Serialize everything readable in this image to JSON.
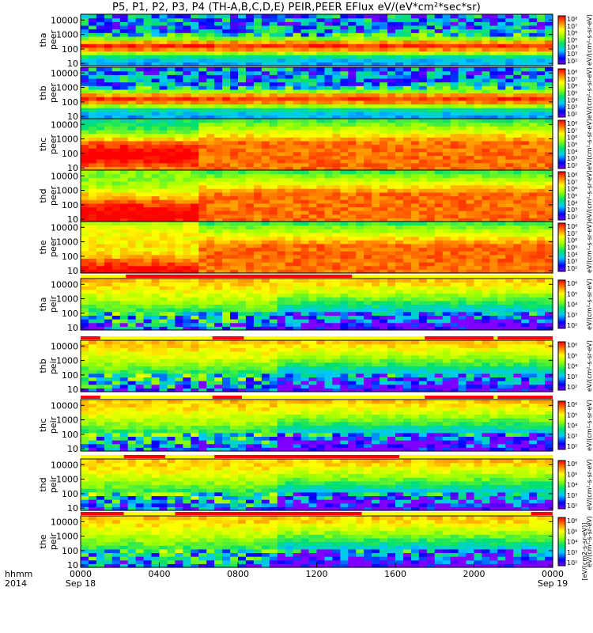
{
  "title": "P5, P1, P2, P3, P4 (TH-A,B,C,D,E) PEIR,PEER EFlux eV/(eV*cm²*sec*sr)",
  "chart_data": {
    "type": "heatmap",
    "xaxis": {
      "row_label_1": "hhmm",
      "row_label_2": "2014",
      "range_hours": [
        0,
        24
      ],
      "ticks": [
        {
          "hour": 0,
          "label": "0000",
          "date": "Sep 18"
        },
        {
          "hour": 4,
          "label": "0400",
          "date": ""
        },
        {
          "hour": 8,
          "label": "0800",
          "date": ""
        },
        {
          "hour": 12,
          "label": "1200",
          "date": ""
        },
        {
          "hour": 16,
          "label": "1600",
          "date": ""
        },
        {
          "hour": 20,
          "label": "2000",
          "date": ""
        },
        {
          "hour": 24,
          "label": "0000",
          "date": "Sep 19"
        }
      ]
    },
    "yaxis": {
      "scale": "log",
      "range_eV": [
        7,
        25000
      ],
      "ticks": [
        10,
        100,
        1000,
        10000
      ],
      "tick_labels": [
        "10",
        "100",
        "1000",
        "10000"
      ]
    },
    "colorbar": {
      "scale": "log",
      "tick_labels_electron": [
        "10⁸",
        "10⁷",
        "10⁶",
        "10⁵",
        "10⁴",
        "10³",
        "10²"
      ],
      "tick_labels_ion": [
        "10⁶",
        "10⁵",
        "10⁴",
        "10³",
        "10²"
      ],
      "label_electron": "eV/(cm²-s-sr-eV)",
      "label_ion": "eV/(cm²-s-sr-eV)",
      "label_bottom": "[eV/(cm2-s-sr-eV)]"
    },
    "series": [
      {
        "name": "thapeer",
        "probe": "tha",
        "species": "peer",
        "ylabel_1": "tha",
        "ylabel_2": "peer"
      },
      {
        "name": "thbpeer",
        "probe": "thb",
        "species": "peer",
        "ylabel_1": "thb",
        "ylabel_2": "peer"
      },
      {
        "name": "thcpeer",
        "probe": "thc",
        "species": "peer",
        "ylabel_1": "thc",
        "ylabel_2": "peer"
      },
      {
        "name": "thdpeer",
        "probe": "thd",
        "species": "peer",
        "ylabel_1": "thd",
        "ylabel_2": "peer"
      },
      {
        "name": "thepeer",
        "probe": "the",
        "species": "peer",
        "ylabel_1": "the",
        "ylabel_2": "peer"
      },
      {
        "name": "thapeir",
        "probe": "tha",
        "species": "peir",
        "ylabel_1": "tha",
        "ylabel_2": "peir"
      },
      {
        "name": "thbpeir",
        "probe": "thb",
        "species": "peir",
        "ylabel_1": "thb",
        "ylabel_2": "peir"
      },
      {
        "name": "thcpeir",
        "probe": "thc",
        "species": "peir",
        "ylabel_1": "thc",
        "ylabel_2": "peir"
      },
      {
        "name": "thdpeir",
        "probe": "thd",
        "species": "peir",
        "ylabel_1": "thd",
        "ylabel_2": "peir"
      },
      {
        "name": "thepeir",
        "probe": "the",
        "species": "peir",
        "ylabel_1": "the",
        "ylabel_2": "peir"
      }
    ],
    "mode_bars": {
      "colors": {
        "fast_survey": "#ff0000",
        "slow_survey": "#ffff00",
        "gap": "#ffffff"
      },
      "segments": [
        [
          [
            0,
            24,
            "gap"
          ]
        ],
        [
          [
            0,
            24,
            "gap"
          ]
        ],
        [
          [
            0,
            24,
            "gap"
          ]
        ],
        [
          [
            0,
            24,
            "gap"
          ]
        ],
        [
          [
            0,
            2.3,
            "slow_survey"
          ],
          [
            2.3,
            13.8,
            "fast_survey"
          ],
          [
            13.8,
            24,
            "slow_survey"
          ]
        ],
        [
          [
            0,
            1,
            "fast_survey"
          ],
          [
            1,
            6.7,
            "slow_survey"
          ],
          [
            6.7,
            8.3,
            "fast_survey"
          ],
          [
            8.3,
            17.5,
            "slow_survey"
          ],
          [
            17.5,
            21,
            "fast_survey"
          ],
          [
            21,
            21.2,
            "slow_survey"
          ],
          [
            21.2,
            24,
            "fast_survey"
          ]
        ],
        [
          [
            0,
            1,
            "fast_survey"
          ],
          [
            1,
            6.7,
            "slow_survey"
          ],
          [
            6.7,
            8.2,
            "fast_survey"
          ],
          [
            8.2,
            17.5,
            "slow_survey"
          ],
          [
            17.5,
            21,
            "fast_survey"
          ],
          [
            21,
            21.2,
            "slow_survey"
          ],
          [
            21.2,
            24,
            "fast_survey"
          ]
        ],
        [
          [
            0,
            2.2,
            "slow_survey"
          ],
          [
            2.2,
            4.3,
            "fast_survey"
          ],
          [
            4.3,
            6.8,
            "slow_survey"
          ],
          [
            6.8,
            16.2,
            "fast_survey"
          ],
          [
            16.2,
            24,
            "slow_survey"
          ]
        ],
        [
          [
            0,
            2.2,
            "fast_survey"
          ],
          [
            2.2,
            4.8,
            "slow_survey"
          ],
          [
            4.8,
            14.3,
            "fast_survey"
          ],
          [
            14.3,
            22.9,
            "slow_survey"
          ],
          [
            22.9,
            24,
            "fast_survey"
          ]
        ],
        [
          [
            0,
            24,
            "gap"
          ]
        ]
      ]
    }
  }
}
